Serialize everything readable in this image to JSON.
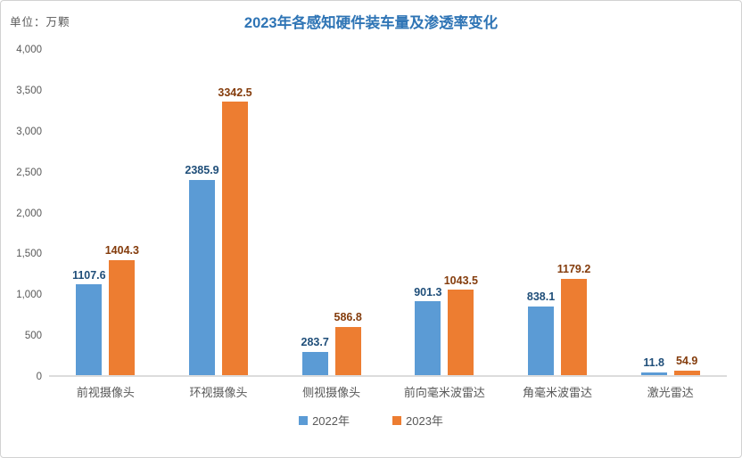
{
  "header": {
    "unit_label": "单位：万颗",
    "title": "2023年各感知硬件装车量及渗透率变化",
    "title_color": "#2e74b5",
    "unit_label_color": "#595959"
  },
  "chart_data": {
    "type": "bar",
    "title": "2023年各感知硬件装车量及渗透率变化",
    "unit": "万颗",
    "categories": [
      "前视摄像头",
      "环视摄像头",
      "侧视摄像头",
      "前向毫米波雷达",
      "角毫米波雷达",
      "激光雷达"
    ],
    "series": [
      {
        "name": "2022年",
        "color": "#5b9bd5",
        "label_color": "#1f4e79",
        "values": [
          1107.6,
          2385.9,
          283.7,
          901.3,
          838.1,
          11.8
        ]
      },
      {
        "name": "2023年",
        "color": "#ed7d31",
        "label_color": "#843c0c",
        "values": [
          1404.3,
          3342.5,
          586.8,
          1043.5,
          1179.2,
          54.9
        ]
      }
    ],
    "ylim": [
      0,
      4000
    ],
    "ytick_interval": 500,
    "yticks": [
      "4,000",
      "3,500",
      "3,000",
      "2,500",
      "2,000",
      "1,500",
      "1,000",
      "500",
      "0"
    ],
    "grid": false,
    "data_labels": true,
    "legend_position": "bottom",
    "axis_line_color": "#dcdcdc",
    "tick_label_color": "#595959"
  }
}
